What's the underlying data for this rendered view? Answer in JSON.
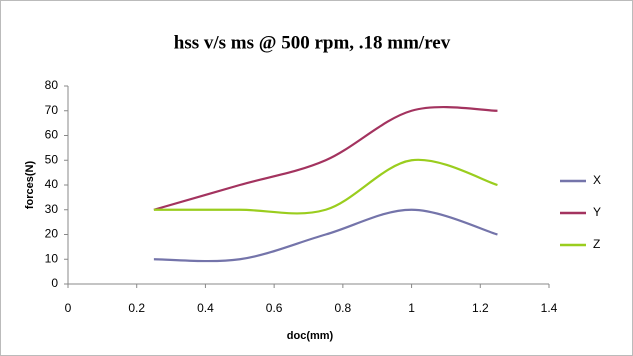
{
  "chart_data": {
    "type": "line",
    "title": "hss v/s ms @ 500 rpm,  .18 mm/rev",
    "x_label": "doc(mm)",
    "y_label": "forces(N)",
    "x": [
      0.25,
      0.5,
      0.75,
      1,
      1.25
    ],
    "series": [
      {
        "name": "X",
        "color": "#7474aa",
        "values": [
          10,
          10,
          20,
          30,
          20
        ]
      },
      {
        "name": "Y",
        "color": "#a3335f",
        "values": [
          30,
          40,
          50,
          70,
          70
        ]
      },
      {
        "name": "Z",
        "color": "#9acd1e",
        "values": [
          30,
          30,
          30,
          50,
          40
        ]
      }
    ],
    "xlim": [
      0,
      1.4
    ],
    "xticks": [
      0,
      0.2,
      0.4,
      0.6,
      0.8,
      1,
      1.2,
      1.4
    ],
    "ylim": [
      0,
      80
    ],
    "yticks": [
      0,
      10,
      20,
      30,
      40,
      50,
      60,
      70,
      80
    ],
    "smooth": true,
    "grid": false,
    "legend": "right"
  }
}
